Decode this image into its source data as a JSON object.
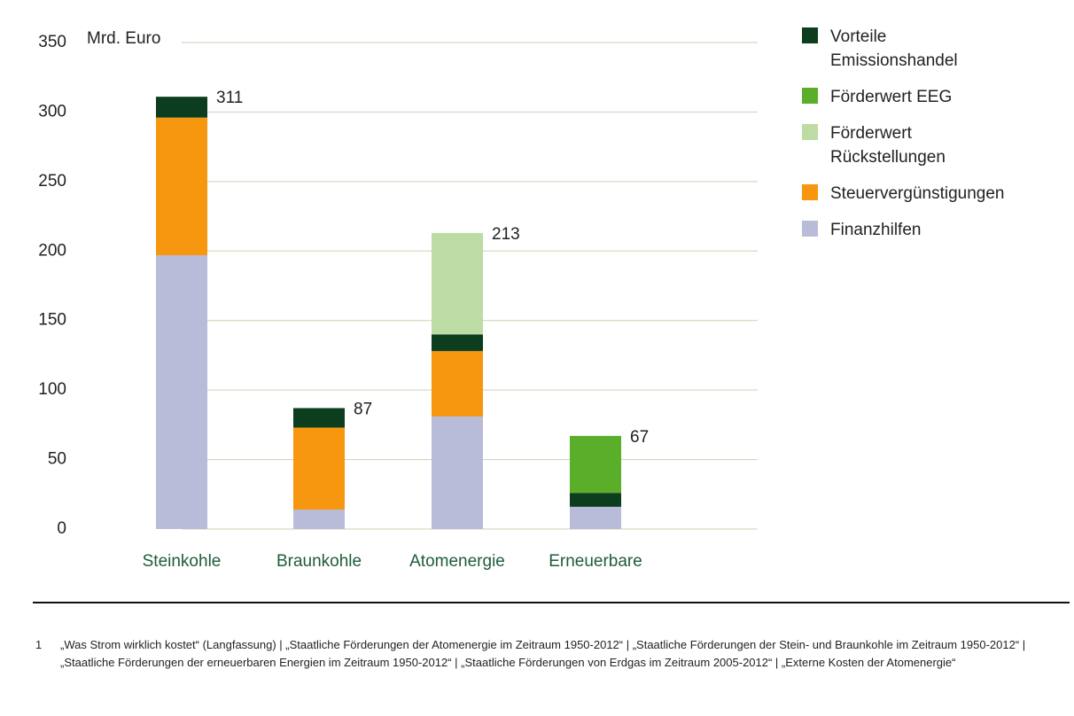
{
  "chart_data": {
    "type": "stacked_bar",
    "y_label": "Mrd. Euro",
    "categories": [
      "Steinkohle",
      "Braunkohle",
      "Atomenergie",
      "Erneuerbare"
    ],
    "series": [
      {
        "name": "Vorteile Emissionshandel",
        "color": "#0b3d1e",
        "values": [
          15,
          14,
          12,
          10
        ]
      },
      {
        "name": "Förderwert EEG",
        "color": "#5aae2a",
        "values": [
          null,
          null,
          null,
          41
        ]
      },
      {
        "name": "Förderwert Rückstellungen",
        "color": "#bcdca4",
        "values": [
          null,
          null,
          73,
          null
        ]
      },
      {
        "name": "Steuervergünstigungen",
        "color": "#f7960f",
        "values": [
          99,
          59,
          47,
          null
        ]
      },
      {
        "name": "Finanzhilfen",
        "color": "#b8bcd9",
        "values": [
          197,
          14,
          81,
          16
        ]
      }
    ],
    "totals": [
      311,
      87,
      213,
      67
    ],
    "ylim": [
      0,
      350
    ],
    "yticks": [
      0,
      50,
      100,
      150,
      200,
      250,
      300,
      350
    ],
    "grid": true
  },
  "footnote": {
    "number": "1",
    "text": "„Was Strom wirklich kostet“ (Langfassung) | „Staatliche Förderungen der Atomenergie im Zeitraum 1950-2012“ | „Staatliche Förderungen der Stein- und Braunkohle im Zeitraum 1950-2012“ | „Staatliche Förderungen der erneuerbaren Energien im Zeitraum 1950-2012“ | „Staatliche Förderungen von Erdgas im Zeitraum 2005-2012“ | „Externe Kosten der Atomenergie“"
  }
}
